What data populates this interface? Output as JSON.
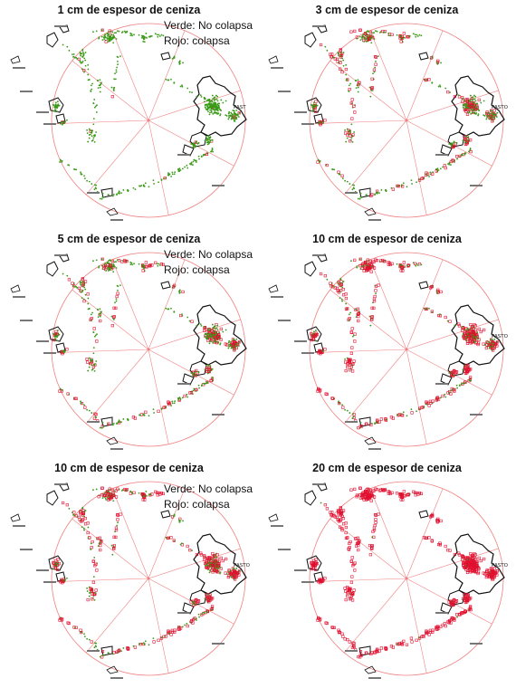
{
  "legend": {
    "green_label": "Verde: No colapsa",
    "red_label": "Rojo: colapsa"
  },
  "colors": {
    "no_collapse": "#3a9a18",
    "collapse": "#e01030",
    "ring": "#f08080",
    "outline": "#111111"
  },
  "panels": [
    {
      "title": "1 cm de espesor de ceniza",
      "city": "PAST",
      "collapse_share": 0.03,
      "legend_visible": true
    },
    {
      "title": "3 cm de espesor de ceniza",
      "city": "PASTO",
      "collapse_share": 0.3,
      "legend_visible": false
    },
    {
      "title": "5 cm de espesor de ceniza",
      "city": "",
      "collapse_share": 0.35,
      "legend_visible": true
    },
    {
      "title": "10 cm de espesor de ceniza",
      "city": "PASTO",
      "collapse_share": 0.6,
      "legend_visible": false
    },
    {
      "title": "10 cm de espesor de ceniza",
      "city": "PASTO",
      "collapse_share": 0.55,
      "legend_visible": true
    },
    {
      "title": "20 cm de espesor de ceniza",
      "city": "PASTO",
      "collapse_share": 0.97,
      "legend_visible": false
    }
  ]
}
